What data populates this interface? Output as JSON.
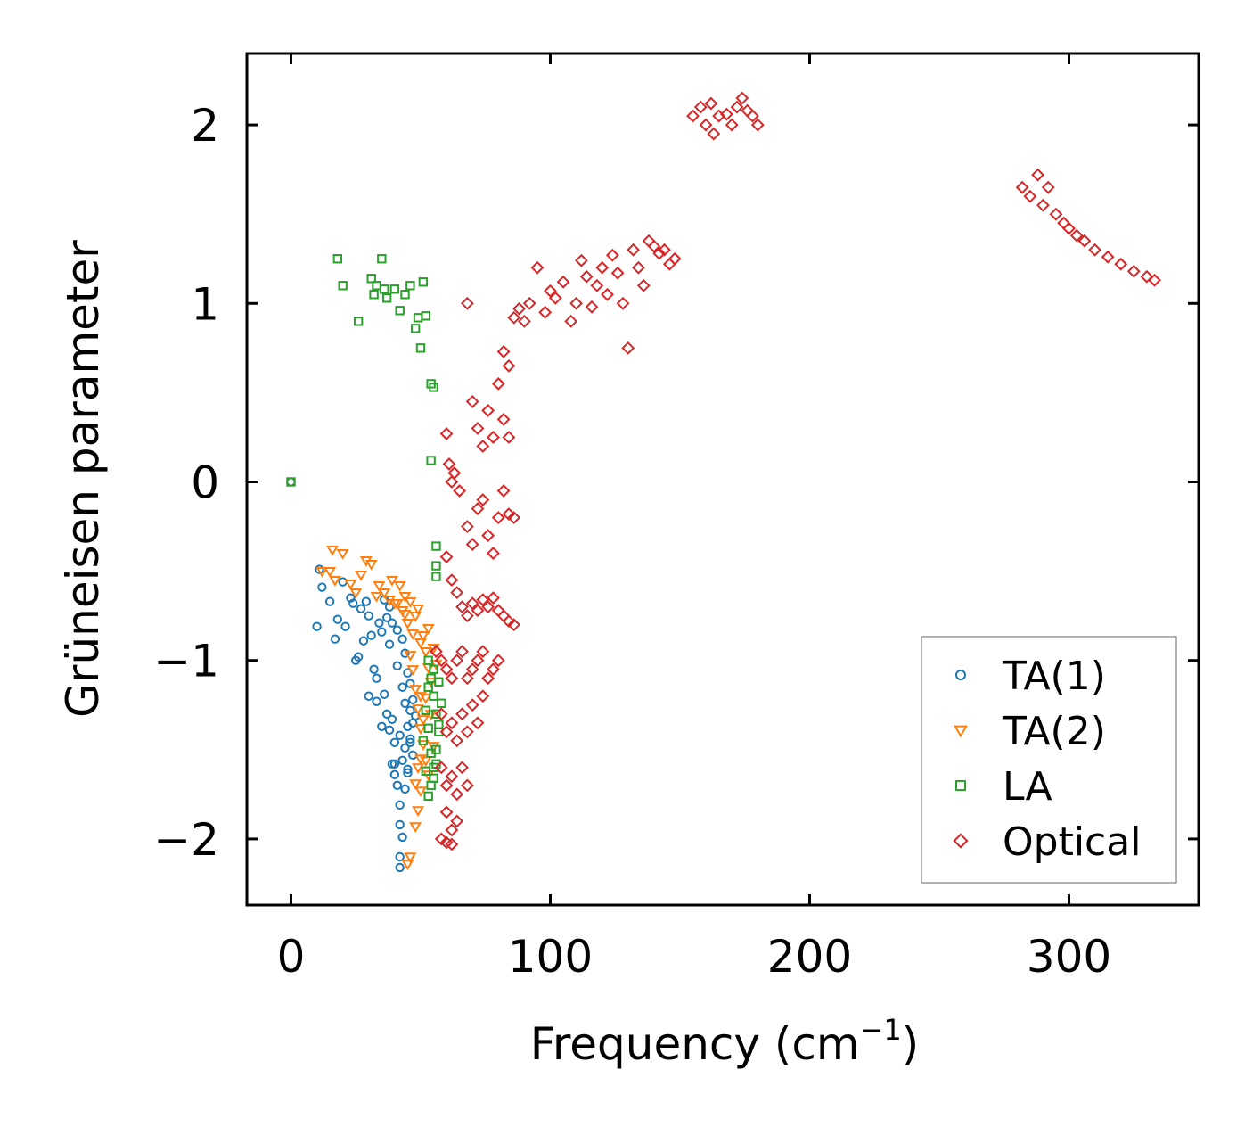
{
  "chart_data": {
    "type": "scatter",
    "title": "",
    "xlabel": "Frequency (cm",
    "xlabel_sup": "−1",
    "xlabel_tail": ")",
    "ylabel": "Grüneisen parameter",
    "xlim": [
      -17,
      350
    ],
    "ylim": [
      -2.37,
      2.4
    ],
    "xticks": [
      0,
      100,
      200,
      300
    ],
    "xtick_labels": [
      "0",
      "100",
      "200",
      "300"
    ],
    "yticks": [
      -2,
      -1,
      0,
      1,
      2
    ],
    "ytick_labels": [
      "−2",
      "−1",
      "0",
      "1",
      "2"
    ],
    "grid": false,
    "legend_position": "bottom-right",
    "series": [
      {
        "name": "TA(1)",
        "marker": "circle",
        "color": "#1f77b4",
        "points": [
          [
            0,
            0
          ],
          [
            11,
            -0.49
          ],
          [
            12,
            -0.59
          ],
          [
            10,
            -0.81
          ],
          [
            17,
            -0.88
          ],
          [
            18,
            -0.77
          ],
          [
            21,
            -0.81
          ],
          [
            23,
            -0.65
          ],
          [
            24,
            -0.68
          ],
          [
            26,
            -0.98
          ],
          [
            27,
            -0.71
          ],
          [
            29,
            -0.67
          ],
          [
            30,
            -0.75
          ],
          [
            31,
            -0.86
          ],
          [
            32,
            -1.05
          ],
          [
            33,
            -1.1
          ],
          [
            34,
            -0.79
          ],
          [
            35,
            -0.84
          ],
          [
            36,
            -1.19
          ],
          [
            37,
            -1.3
          ],
          [
            37,
            -0.76
          ],
          [
            38,
            -0.91
          ],
          [
            39,
            -1.33
          ],
          [
            40,
            -1.46
          ],
          [
            40,
            -1.58
          ],
          [
            41,
            -1.03
          ],
          [
            41,
            -1.7
          ],
          [
            42,
            -1.81
          ],
          [
            42,
            -1.92
          ],
          [
            43,
            -1.99
          ],
          [
            42,
            -2.1
          ],
          [
            42,
            -2.16
          ],
          [
            43,
            -1.15
          ],
          [
            44,
            -1.24
          ],
          [
            44,
            -1.49
          ],
          [
            45,
            -1.37
          ],
          [
            45,
            -1.61
          ],
          [
            46,
            -1.28
          ],
          [
            46,
            -1.44
          ],
          [
            47,
            -1.35
          ],
          [
            47,
            -1.53
          ],
          [
            46,
            -1.13
          ],
          [
            45,
            -1.07
          ],
          [
            44,
            -0.96
          ],
          [
            43,
            -0.88
          ],
          [
            41,
            -0.83
          ],
          [
            39,
            -0.79
          ],
          [
            38,
            -0.7
          ],
          [
            36,
            -0.66
          ],
          [
            20,
            -0.56
          ],
          [
            15,
            -0.67
          ],
          [
            28,
            -0.89
          ],
          [
            25,
            -1.0
          ],
          [
            30,
            -1.2
          ],
          [
            33,
            -1.23
          ],
          [
            35,
            -1.37
          ],
          [
            38,
            -1.39
          ],
          [
            39,
            -1.58
          ],
          [
            40,
            -1.64
          ],
          [
            42,
            -1.42
          ],
          [
            43,
            -1.56
          ],
          [
            44,
            -1.72
          ],
          [
            45,
            -1.63
          ],
          [
            46,
            -1.46
          ],
          [
            47,
            -1.22
          ],
          [
            48,
            -1.31
          ]
        ]
      },
      {
        "name": "TA(2)",
        "marker": "triangle-down",
        "color": "#ff7f0e",
        "points": [
          [
            16,
            -0.38
          ],
          [
            20,
            -0.4
          ],
          [
            15,
            -0.5
          ],
          [
            17,
            -0.55
          ],
          [
            23,
            -0.57
          ],
          [
            25,
            -0.62
          ],
          [
            29,
            -0.44
          ],
          [
            31,
            -0.46
          ],
          [
            34,
            -0.58
          ],
          [
            36,
            -0.62
          ],
          [
            38,
            -0.66
          ],
          [
            39,
            -0.55
          ],
          [
            41,
            -0.68
          ],
          [
            42,
            -0.58
          ],
          [
            43,
            -0.72
          ],
          [
            44,
            -0.64
          ],
          [
            45,
            -0.79
          ],
          [
            46,
            -0.67
          ],
          [
            47,
            -0.85
          ],
          [
            48,
            -0.75
          ],
          [
            49,
            -0.71
          ],
          [
            50,
            -0.9
          ],
          [
            51,
            -0.86
          ],
          [
            52,
            -0.95
          ],
          [
            47,
            -1.05
          ],
          [
            48,
            -1.16
          ],
          [
            49,
            -1.27
          ],
          [
            50,
            -1.38
          ],
          [
            51,
            -1.47
          ],
          [
            52,
            -1.56
          ],
          [
            53,
            -1.64
          ],
          [
            50,
            -1.73
          ],
          [
            49,
            -1.84
          ],
          [
            48,
            -1.93
          ],
          [
            46,
            -2.1
          ],
          [
            45,
            -2.14
          ],
          [
            54,
            -1.12
          ],
          [
            54,
            -1.3
          ],
          [
            55,
            -1.48
          ],
          [
            53,
            -1.04
          ],
          [
            52,
            -1.21
          ],
          [
            51,
            -1.33
          ],
          [
            50,
            -1.55
          ],
          [
            49,
            -1.6
          ],
          [
            48,
            -1.69
          ],
          [
            44,
            -0.74
          ],
          [
            40,
            -0.68
          ],
          [
            33,
            -0.64
          ],
          [
            27,
            -0.52
          ],
          [
            12,
            -0.5
          ],
          [
            55,
            -0.93
          ],
          [
            56,
            -1.02
          ],
          [
            53,
            -0.82
          ],
          [
            46,
            -0.97
          ],
          [
            50,
            -1.2
          ]
        ]
      },
      {
        "name": "LA",
        "marker": "square",
        "color": "#2ca02c",
        "points": [
          [
            0,
            0
          ],
          [
            18,
            1.25
          ],
          [
            20,
            1.1
          ],
          [
            26,
            0.9
          ],
          [
            31,
            1.14
          ],
          [
            32,
            1.05
          ],
          [
            33,
            1.1
          ],
          [
            35,
            1.25
          ],
          [
            36,
            1.08
          ],
          [
            37,
            1.03
          ],
          [
            40,
            1.08
          ],
          [
            42,
            0.96
          ],
          [
            44,
            1.05
          ],
          [
            46,
            1.1
          ],
          [
            48,
            0.86
          ],
          [
            49,
            0.92
          ],
          [
            50,
            0.75
          ],
          [
            51,
            1.12
          ],
          [
            52,
            0.93
          ],
          [
            54,
            0.55
          ],
          [
            55,
            0.53
          ],
          [
            54,
            0.12
          ],
          [
            56,
            -0.36
          ],
          [
            56,
            -0.47
          ],
          [
            56,
            -0.53
          ],
          [
            53,
            -1.0
          ],
          [
            54,
            -1.1
          ],
          [
            55,
            -1.2
          ],
          [
            56,
            -1.3
          ],
          [
            57,
            -1.4
          ],
          [
            56,
            -1.5
          ],
          [
            55,
            -1.6
          ],
          [
            54,
            -1.7
          ],
          [
            53,
            -1.76
          ],
          [
            52,
            -1.62
          ],
          [
            51,
            -1.45
          ],
          [
            52,
            -1.28
          ],
          [
            53,
            -1.15
          ],
          [
            55,
            -1.05
          ],
          [
            57,
            -1.12
          ],
          [
            58,
            -1.24
          ],
          [
            57,
            -1.36
          ],
          [
            56,
            -1.58
          ],
          [
            55,
            -1.66
          ],
          [
            54,
            -1.52
          ],
          [
            53,
            -1.38
          ]
        ]
      },
      {
        "name": "Optical",
        "marker": "diamond",
        "color": "#d62728",
        "points": [
          [
            68,
            1.0
          ],
          [
            82,
            0.73
          ],
          [
            84,
            0.65
          ],
          [
            86,
            0.92
          ],
          [
            88,
            0.97
          ],
          [
            90,
            0.9
          ],
          [
            92,
            1.0
          ],
          [
            95,
            1.2
          ],
          [
            98,
            0.95
          ],
          [
            100,
            1.07
          ],
          [
            102,
            1.03
          ],
          [
            105,
            1.12
          ],
          [
            108,
            0.9
          ],
          [
            110,
            1.0
          ],
          [
            112,
            1.24
          ],
          [
            114,
            1.15
          ],
          [
            116,
            0.98
          ],
          [
            118,
            1.1
          ],
          [
            120,
            1.2
          ],
          [
            122,
            1.05
          ],
          [
            124,
            1.27
          ],
          [
            126,
            1.17
          ],
          [
            128,
            1.0
          ],
          [
            130,
            0.75
          ],
          [
            132,
            1.3
          ],
          [
            134,
            1.2
          ],
          [
            136,
            1.1
          ],
          [
            138,
            1.35
          ],
          [
            140,
            1.32
          ],
          [
            142,
            1.28
          ],
          [
            144,
            1.3
          ],
          [
            146,
            1.22
          ],
          [
            148,
            1.25
          ],
          [
            155,
            2.05
          ],
          [
            158,
            2.1
          ],
          [
            160,
            2.0
          ],
          [
            162,
            2.12
          ],
          [
            163,
            1.95
          ],
          [
            165,
            2.05
          ],
          [
            168,
            2.06
          ],
          [
            170,
            2.0
          ],
          [
            172,
            2.1
          ],
          [
            174,
            2.15
          ],
          [
            176,
            2.08
          ],
          [
            178,
            2.05
          ],
          [
            180,
            2.0
          ],
          [
            282,
            1.65
          ],
          [
            285,
            1.6
          ],
          [
            288,
            1.72
          ],
          [
            290,
            1.55
          ],
          [
            292,
            1.65
          ],
          [
            295,
            1.5
          ],
          [
            298,
            1.45
          ],
          [
            300,
            1.42
          ],
          [
            303,
            1.38
          ],
          [
            306,
            1.35
          ],
          [
            310,
            1.3
          ],
          [
            315,
            1.26
          ],
          [
            320,
            1.22
          ],
          [
            325,
            1.18
          ],
          [
            330,
            1.15
          ],
          [
            333,
            1.13
          ],
          [
            70,
            0.45
          ],
          [
            72,
            0.3
          ],
          [
            74,
            0.2
          ],
          [
            76,
            0.4
          ],
          [
            78,
            0.25
          ],
          [
            80,
            0.55
          ],
          [
            82,
            0.35
          ],
          [
            84,
            0.25
          ],
          [
            60,
            0.27
          ],
          [
            61,
            0.1
          ],
          [
            62,
            0.0
          ],
          [
            63,
            0.05
          ],
          [
            65,
            -0.05
          ],
          [
            68,
            -0.25
          ],
          [
            70,
            -0.35
          ],
          [
            72,
            -0.15
          ],
          [
            74,
            -0.1
          ],
          [
            76,
            -0.3
          ],
          [
            78,
            -0.4
          ],
          [
            80,
            -0.2
          ],
          [
            82,
            -0.05
          ],
          [
            84,
            -0.18
          ],
          [
            86,
            -0.2
          ],
          [
            60,
            -0.42
          ],
          [
            62,
            -0.55
          ],
          [
            64,
            -0.62
          ],
          [
            66,
            -0.7
          ],
          [
            68,
            -0.75
          ],
          [
            70,
            -0.68
          ],
          [
            72,
            -0.72
          ],
          [
            74,
            -0.66
          ],
          [
            76,
            -0.7
          ],
          [
            78,
            -0.65
          ],
          [
            80,
            -0.72
          ],
          [
            82,
            -0.75
          ],
          [
            84,
            -0.78
          ],
          [
            86,
            -0.8
          ],
          [
            56,
            -0.95
          ],
          [
            58,
            -1.0
          ],
          [
            60,
            -1.05
          ],
          [
            62,
            -1.1
          ],
          [
            64,
            -1.0
          ],
          [
            66,
            -0.95
          ],
          [
            68,
            -1.1
          ],
          [
            70,
            -1.05
          ],
          [
            72,
            -1.0
          ],
          [
            74,
            -0.95
          ],
          [
            76,
            -1.1
          ],
          [
            78,
            -1.05
          ],
          [
            80,
            -1.0
          ],
          [
            58,
            -1.3
          ],
          [
            60,
            -1.4
          ],
          [
            62,
            -1.35
          ],
          [
            64,
            -1.45
          ],
          [
            66,
            -1.3
          ],
          [
            68,
            -1.4
          ],
          [
            70,
            -1.25
          ],
          [
            72,
            -1.35
          ],
          [
            74,
            -1.2
          ],
          [
            58,
            -1.6
          ],
          [
            60,
            -1.7
          ],
          [
            62,
            -1.65
          ],
          [
            64,
            -1.75
          ],
          [
            66,
            -1.6
          ],
          [
            68,
            -1.7
          ],
          [
            60,
            -1.85
          ],
          [
            62,
            -1.95
          ],
          [
            64,
            -1.9
          ],
          [
            58,
            -2.0
          ],
          [
            60,
            -2.02
          ],
          [
            62,
            -2.03
          ]
        ]
      }
    ]
  }
}
